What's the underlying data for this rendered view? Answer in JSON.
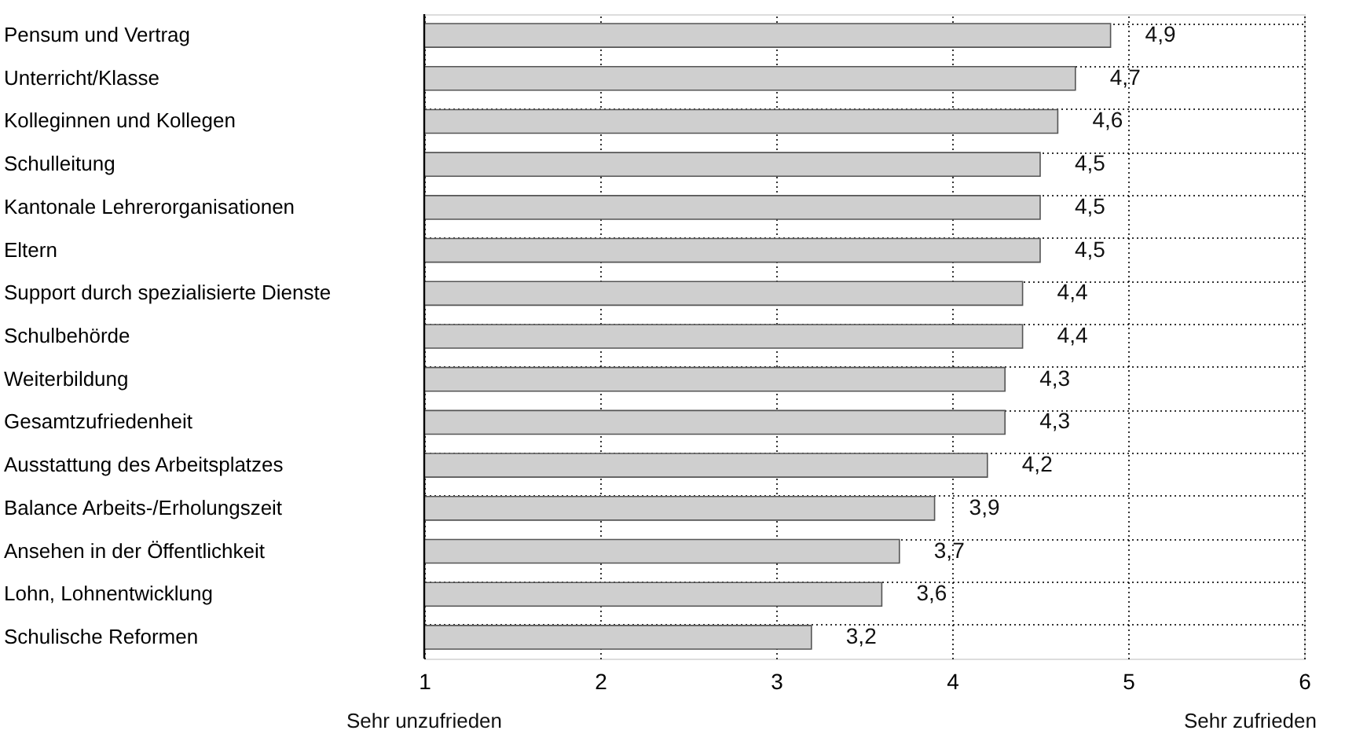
{
  "chart_data": {
    "type": "bar",
    "orientation": "horizontal",
    "categories": [
      "Pensum und Vertrag",
      "Unterricht/Klasse",
      "Kolleginnen und Kollegen",
      "Schulleitung",
      "Kantonale Lehrerorganisationen",
      "Eltern",
      "Support durch spezialisierte Dienste",
      "Schulbehörde",
      "Weiterbildung",
      "Gesamtzufriedenheit",
      "Ausstattung des Arbeitsplatzes",
      "Balance Arbeits-/Erholungszeit",
      "Ansehen in der Öffentlichkeit",
      "Lohn, Lohnentwicklung",
      "Schulische Reformen"
    ],
    "values": [
      4.9,
      4.7,
      4.6,
      4.5,
      4.5,
      4.5,
      4.4,
      4.4,
      4.3,
      4.3,
      4.2,
      3.9,
      3.7,
      3.6,
      3.2
    ],
    "value_labels": [
      "4,9",
      "4,7",
      "4,6",
      "4,5",
      "4,5",
      "4,5",
      "4,4",
      "4,4",
      "4,3",
      "4,3",
      "4,2",
      "3,9",
      "3,7",
      "3,6",
      "3,2"
    ],
    "color": "#cfcfcf",
    "xlim": [
      1,
      6
    ],
    "xticks": [
      1,
      2,
      3,
      4,
      5,
      6
    ],
    "grid": true,
    "annotations": [
      "Sehr unzufrieden",
      "Sehr zufrieden"
    ]
  }
}
